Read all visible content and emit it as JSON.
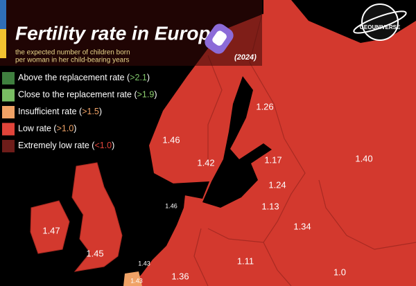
{
  "header": {
    "title": "Fertility rate in Europe",
    "subtitle_lines": [
      "the expected number of children born",
      "per woman in her child-bearing years"
    ],
    "year": "(2024)",
    "logo": "GEOUNIVERSE"
  },
  "legend": [
    {
      "label": "Above the replacement rate (",
      "threshold": ">2.1",
      "close": ")",
      "color": "#3f7f3f"
    },
    {
      "label": "Close to the replacement rate (",
      "threshold": ">1.9",
      "close": ")",
      "color": "#79bd63"
    },
    {
      "label": "Insufficient rate (",
      "threshold": ">1.5",
      "close": ")",
      "color": "#f0a266"
    },
    {
      "label": "Low rate (",
      "threshold": ">1.0",
      "close": ")",
      "color": "#e0443a"
    },
    {
      "label": "Extremely low rate (",
      "threshold": "<1.0",
      "close": ")",
      "color": "#6e1d1a"
    }
  ],
  "map_labels": [
    "1.26",
    "1.46",
    "1.42",
    "1.17",
    "1.40",
    "1.24",
    "1.46",
    "1.13",
    "1.34",
    "1.47",
    "1.45",
    "1.43",
    "1.11",
    "1.36",
    "1.0",
    "1.43"
  ]
}
